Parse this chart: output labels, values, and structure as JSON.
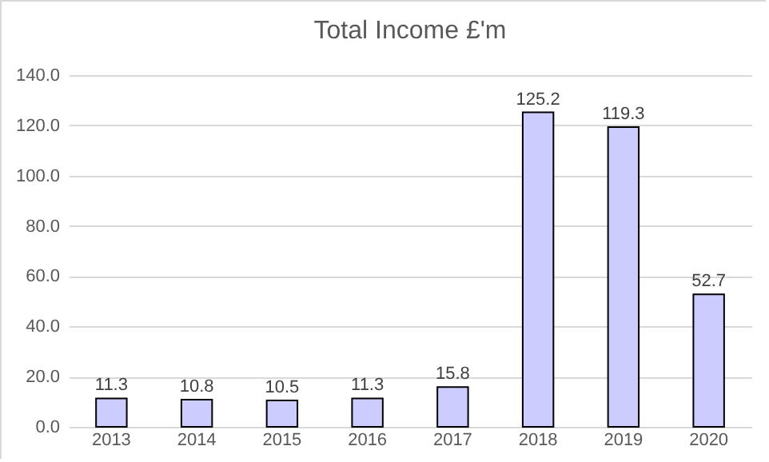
{
  "chart_data": {
    "type": "bar",
    "title": "Total Income £'m",
    "categories": [
      "2013",
      "2014",
      "2015",
      "2016",
      "2017",
      "2018",
      "2019",
      "2020"
    ],
    "values": [
      11.3,
      10.8,
      10.5,
      11.3,
      15.8,
      125.2,
      119.3,
      52.7
    ],
    "color": "#ccccff",
    "ylim": [
      0,
      140
    ],
    "yticks": [
      {
        "value": 0,
        "label": "0.0"
      },
      {
        "value": 20,
        "label": "20.0"
      },
      {
        "value": 40,
        "label": "40.0"
      },
      {
        "value": 60,
        "label": "60.0"
      },
      {
        "value": 80,
        "label": "80.0"
      },
      {
        "value": 100,
        "label": "100.0"
      },
      {
        "value": 120,
        "label": "120.0"
      },
      {
        "value": 140,
        "label": "140.0"
      }
    ],
    "grid": "y",
    "data_labels": true
  }
}
